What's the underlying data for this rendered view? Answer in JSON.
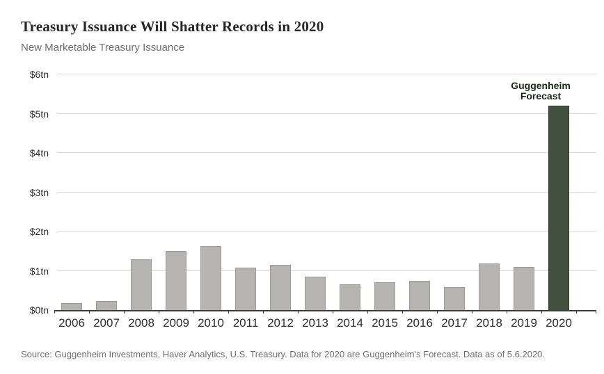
{
  "header": {
    "title": "Treasury Issuance Will Shatter Records in 2020",
    "subtitle": "New Marketable Treasury Issuance"
  },
  "chart_data": {
    "type": "bar",
    "title": "Treasury Issuance Will Shatter Records in 2020",
    "subtitle": "New Marketable Treasury Issuance",
    "categories": [
      "2006",
      "2007",
      "2008",
      "2009",
      "2010",
      "2011",
      "2012",
      "2013",
      "2014",
      "2015",
      "2016",
      "2017",
      "2018",
      "2019",
      "2020"
    ],
    "values": [
      0.17,
      0.23,
      1.3,
      1.5,
      1.62,
      1.08,
      1.15,
      0.85,
      0.65,
      0.71,
      0.74,
      0.58,
      1.18,
      1.1,
      5.2
    ],
    "unit": "trillion USD",
    "ylim": [
      0,
      6
    ],
    "y_ticks": [
      "$0tn",
      "$1tn",
      "$2tn",
      "$3tn",
      "$4tn",
      "$5tn",
      "$6tn"
    ],
    "grid": "horizontal",
    "legend": "none",
    "highlight_index": 14,
    "annotation": {
      "line1": "Guggenheim",
      "line2": "Forecast",
      "target": "2020"
    },
    "colors": {
      "bar_fill": "#b6b4b1",
      "bar_border": "#9c9a97",
      "highlight_fill": "#42513d",
      "highlight_border": "#2e3c2b",
      "gridline": "#dbdad8",
      "axis": "#3c3c3c",
      "annotation_text": "#1b261b"
    }
  },
  "footer": {
    "source": "Source: Guggenheim Investments, Haver Analytics, U.S. Treasury. Data for 2020 are Guggenheim's Forecast. Data as of 5.6.2020."
  }
}
